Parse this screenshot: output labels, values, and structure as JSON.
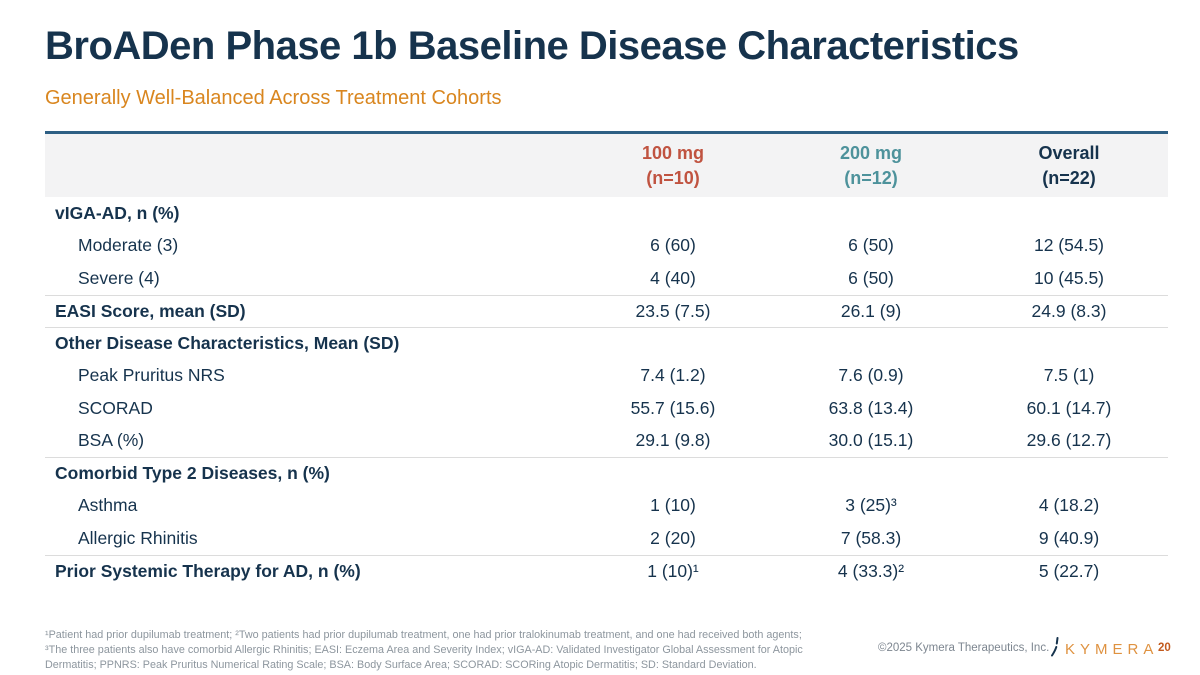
{
  "slide": {
    "title": "BroADen Phase 1b Baseline Disease Characteristics",
    "subtitle": "Generally Well-Balanced Across Treatment Cohorts",
    "page_number": "20",
    "copyright": "©2025 Kymera Therapeutics, Inc.",
    "logo_text": "KYMERA"
  },
  "colors": {
    "navy": "#16334d",
    "accent_red": "#c05340",
    "accent_teal": "#4d929b",
    "subtitle_orange": "#d9861f",
    "logo_orange": "#df9240",
    "page_number_orange": "#c25a1e",
    "header_bg": "#f3f3f4",
    "table_top_border": "#2d5f84",
    "separator_gray": "#dcdcdc",
    "footnote_gray": "#8d969e"
  },
  "chart_data": {
    "type": "table",
    "columns": [
      {
        "label": "100 mg",
        "sub": "(n=10)",
        "color": "#c05340"
      },
      {
        "label": "200 mg",
        "sub": "(n=12)",
        "color": "#4d929b"
      },
      {
        "label": "Overall",
        "sub": "(n=22)",
        "color": "#16334d"
      }
    ],
    "rows": [
      {
        "label": "vIGA-AD, n (%)",
        "type": "section",
        "separator": false,
        "values": [
          "",
          "",
          ""
        ]
      },
      {
        "label": "Moderate (3)",
        "type": "sub",
        "separator": false,
        "values": [
          "6 (60)",
          "6 (50)",
          "12 (54.5)"
        ]
      },
      {
        "label": "Severe (4)",
        "type": "sub",
        "separator": false,
        "values": [
          "4 (40)",
          "6 (50)",
          "10 (45.5)"
        ]
      },
      {
        "label": "EASI Score, mean (SD)",
        "type": "section",
        "separator": true,
        "values": [
          "23.5 (7.5)",
          "26.1 (9)",
          "24.9 (8.3)"
        ]
      },
      {
        "label": "Other Disease Characteristics, Mean (SD)",
        "type": "section",
        "separator": true,
        "values": [
          "",
          "",
          ""
        ]
      },
      {
        "label": "Peak Pruritus NRS",
        "type": "sub",
        "separator": false,
        "values": [
          "7.4 (1.2)",
          "7.6 (0.9)",
          "7.5 (1)"
        ]
      },
      {
        "label": "SCORAD",
        "type": "sub",
        "separator": false,
        "values": [
          "55.7 (15.6)",
          "63.8 (13.4)",
          "60.1 (14.7)"
        ]
      },
      {
        "label": "BSA (%)",
        "type": "sub",
        "separator": false,
        "values": [
          "29.1 (9.8)",
          "30.0 (15.1)",
          "29.6 (12.7)"
        ]
      },
      {
        "label": "Comorbid Type 2 Diseases, n (%)",
        "type": "section",
        "separator": true,
        "values": [
          "",
          "",
          ""
        ]
      },
      {
        "label": "Asthma",
        "type": "sub",
        "separator": false,
        "values": [
          "1 (10)",
          "3 (25)³",
          "4 (18.2)"
        ]
      },
      {
        "label": "Allergic Rhinitis",
        "type": "sub",
        "separator": false,
        "values": [
          "2 (20)",
          "7 (58.3)",
          "9 (40.9)"
        ]
      },
      {
        "label": "Prior Systemic Therapy for AD, n (%)",
        "type": "section",
        "separator": true,
        "values": [
          "1 (10)¹",
          "4 (33.3)²",
          "5 (22.7)"
        ]
      }
    ]
  },
  "footnotes": {
    "line1": "¹Patient had prior dupilumab treatment; ²Two patients had prior dupilumab treatment, one had prior tralokinumab treatment, and one had received both agents;",
    "line2": "³The three patients also have comorbid Allergic Rhinitis; EASI: Eczema Area and Severity Index; vIGA-AD: Validated Investigator Global Assessment for Atopic",
    "line3": "Dermatitis; PPNRS: Peak Pruritus Numerical Rating Scale; BSA: Body Surface Area; SCORAD: SCORing Atopic Dermatitis; SD: Standard Deviation."
  }
}
